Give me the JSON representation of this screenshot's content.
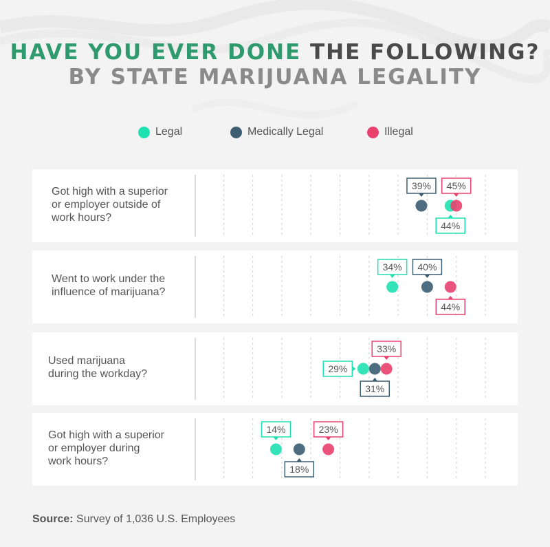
{
  "title": {
    "part1": "HAVE YOU EVER DONE",
    "part2": "THE FOLLOWING?",
    "subtitle": "BY STATE MARIJUANA LEGALITY"
  },
  "colors": {
    "accent_green": "#2e9a6e",
    "dark_gray": "#4a4a4a",
    "legal": "#1fe0b0",
    "medically_legal": "#3c5d72",
    "illegal": "#e8416e"
  },
  "legend": [
    {
      "label": "Legal",
      "color": "#1fe0b0"
    },
    {
      "label": "Medically Legal",
      "color": "#3c5d72"
    },
    {
      "label": "Illegal",
      "color": "#e8416e"
    }
  ],
  "chart_data": {
    "type": "scatter",
    "title": "HAVE YOU EVER DONE THE FOLLOWING? BY STATE MARIJUANA LEGALITY",
    "xlim": [
      0,
      50
    ],
    "value_suffix": "%",
    "series_names": [
      "Legal",
      "Medically Legal",
      "Illegal"
    ],
    "rows": [
      {
        "label": "Got high with a superior\nor employer outside of\nwork hours?",
        "values": {
          "Legal": 44,
          "Medically Legal": 39,
          "Illegal": 45
        }
      },
      {
        "label": "Went to work under the\ninfluence of marijuana?",
        "values": {
          "Legal": 34,
          "Medically Legal": 40,
          "Illegal": 44
        }
      },
      {
        "label": "Used marijuana\nduring the workday?",
        "values": {
          "Legal": 29,
          "Medically Legal": 31,
          "Illegal": 33
        }
      },
      {
        "label": "Got high with a superior\nor employer during\nwork hours?",
        "values": {
          "Legal": 14,
          "Medically Legal": 18,
          "Illegal": 23
        }
      }
    ]
  },
  "source": {
    "label": "Source:",
    "text": "Survey of 1,036 U.S. Employees"
  }
}
